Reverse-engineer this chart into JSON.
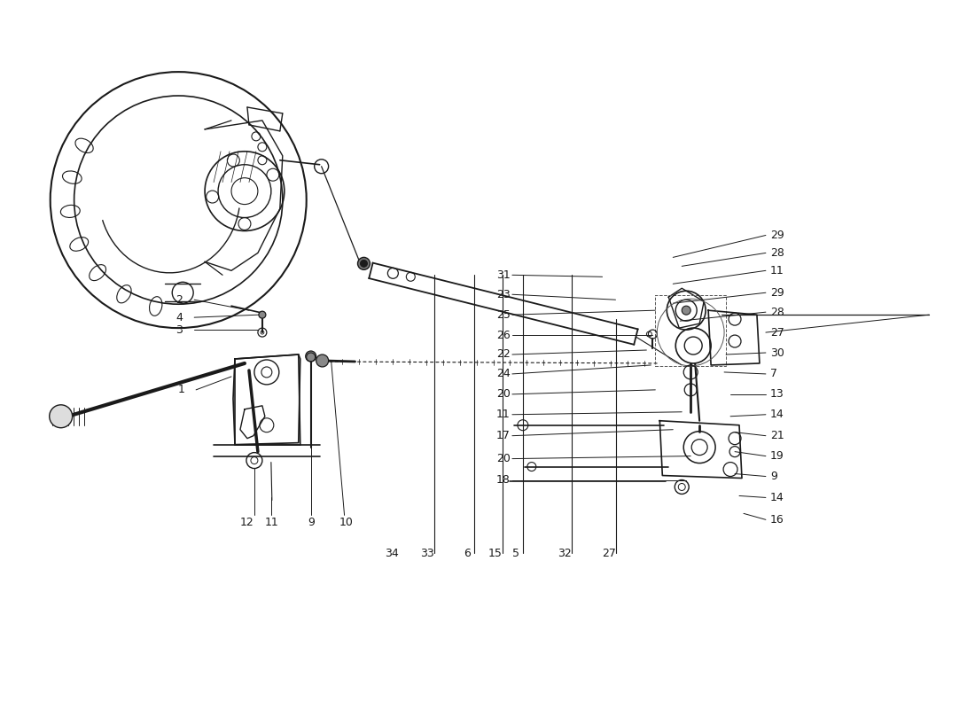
{
  "title": "",
  "bg_color": "#ffffff",
  "line_color": "#1a1a1a",
  "text_color": "#1a1a1a",
  "figsize": [
    11.0,
    8.0
  ],
  "dpi": 100
}
